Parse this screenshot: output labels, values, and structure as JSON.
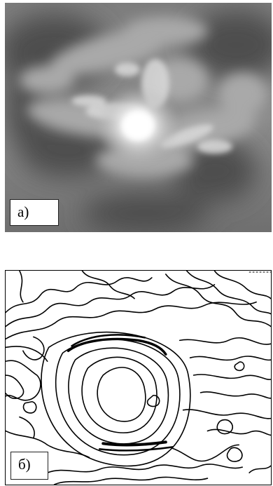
{
  "figure": {
    "panels": [
      {
        "id": "a",
        "label": "а)",
        "kind": "grayscale-nebula-image",
        "colors": {
          "background": "#8a8a8a",
          "bright_core": "#ffffff",
          "dark_regions": "#4a4a4a"
        }
      },
      {
        "id": "b",
        "label": "б)",
        "kind": "contour-map",
        "colors": {
          "background": "#ffffff",
          "lines": "#000000"
        }
      }
    ]
  }
}
